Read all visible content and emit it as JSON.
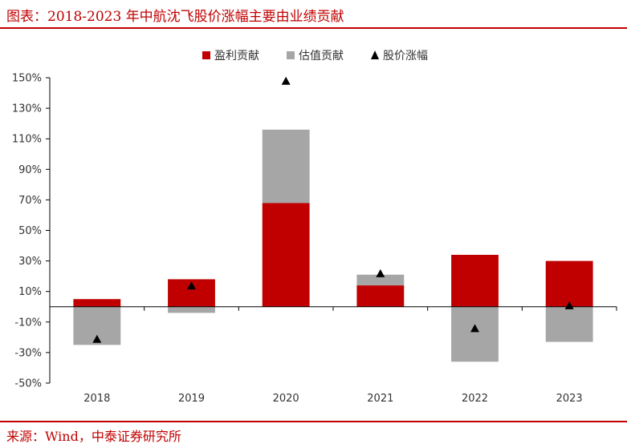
{
  "title": "图表：2018-2023 年中航沈飞股价涨幅主要由业绩贡献",
  "source": "来源：Wind，中泰证券研究所",
  "colors": {
    "earnings": "#c00000",
    "valuation": "#a6a6a6",
    "marker": "#000000",
    "accent": "#c00000"
  },
  "chart_data": {
    "type": "bar",
    "stacked": true,
    "categories": [
      "2018",
      "2019",
      "2020",
      "2021",
      "2022",
      "2023"
    ],
    "series": [
      {
        "name": "盈利贡献",
        "kind": "bar",
        "values": [
          5,
          18,
          68,
          14,
          34,
          30
        ]
      },
      {
        "name": "估值贡献",
        "kind": "bar",
        "values": [
          -25,
          -4,
          48,
          7,
          -36,
          -23
        ]
      },
      {
        "name": "股价涨幅",
        "kind": "marker",
        "values": [
          -21,
          14,
          148,
          22,
          -14,
          1
        ]
      }
    ],
    "yticks": [
      "150%",
      "130%",
      "110%",
      "90%",
      "70%",
      "50%",
      "30%",
      "10%",
      "-10%",
      "-30%",
      "-50%"
    ],
    "ytick_values": [
      150,
      130,
      110,
      90,
      70,
      50,
      30,
      10,
      -10,
      -30,
      -50
    ],
    "ylim": [
      -50,
      150
    ],
    "legend_position": "top-center",
    "grid": false
  }
}
